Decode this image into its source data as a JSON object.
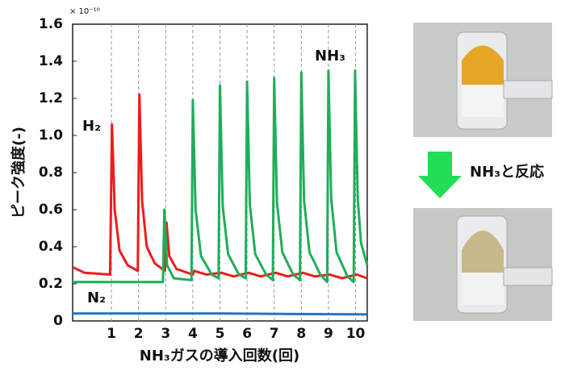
{
  "chart_data": {
    "type": "line",
    "ylabel": "ピーク強度(-)",
    "xlabel": "NH₃ガスの導入回数(回)",
    "multiplier": "× 10⁻¹⁰",
    "xlim": [
      -0.43,
      10.43
    ],
    "ylim": [
      0,
      1.6
    ],
    "xticks": [
      1,
      2,
      3,
      4,
      5,
      6,
      7,
      8,
      9,
      10
    ],
    "yticks": [
      0,
      0.2,
      0.4,
      0.6,
      0.8,
      {
        "value": 1,
        "label": "1.0"
      },
      1.2,
      1.4,
      1.6
    ],
    "grid": "x",
    "series": [
      {
        "name": "H₂",
        "color": "#ee1c1c",
        "x": [
          -0.43,
          0,
          0.95,
          1.02,
          1.12,
          1.3,
          1.6,
          1.97,
          2.03,
          2.13,
          2.3,
          2.6,
          2.97,
          3.03,
          3.13,
          3.4,
          4,
          4.05,
          4.5,
          5.05,
          5.5,
          6.05,
          6.5,
          7.05,
          7.5,
          8.05,
          8.5,
          9.05,
          9.5,
          10.05,
          10.43
        ],
        "values": [
          0.29,
          0.26,
          0.25,
          1.06,
          0.6,
          0.38,
          0.3,
          0.27,
          1.22,
          0.65,
          0.4,
          0.31,
          0.27,
          0.53,
          0.35,
          0.28,
          0.25,
          0.27,
          0.25,
          0.26,
          0.24,
          0.26,
          0.24,
          0.26,
          0.24,
          0.26,
          0.24,
          0.25,
          0.23,
          0.25,
          0.23
        ]
      },
      {
        "name": "NH₃",
        "color": "#1fae5a",
        "x": [
          -0.43,
          2.9,
          2.95,
          3.05,
          3.3,
          3.95,
          4.0,
          4.1,
          4.3,
          4.7,
          4.95,
          5.0,
          5.1,
          5.3,
          5.7,
          5.95,
          6.0,
          6.1,
          6.3,
          6.7,
          6.95,
          7.0,
          7.1,
          7.3,
          7.7,
          7.95,
          8.0,
          8.1,
          8.3,
          8.7,
          8.95,
          9.0,
          9.1,
          9.3,
          9.7,
          9.93,
          9.98,
          10.08,
          10.2,
          10.43
        ],
        "values": [
          0.21,
          0.21,
          0.6,
          0.3,
          0.23,
          0.22,
          1.19,
          0.6,
          0.35,
          0.25,
          0.23,
          1.27,
          0.62,
          0.36,
          0.25,
          0.23,
          1.29,
          0.63,
          0.36,
          0.25,
          0.22,
          1.31,
          0.64,
          0.37,
          0.25,
          0.22,
          1.34,
          0.65,
          0.37,
          0.25,
          0.21,
          1.35,
          0.66,
          0.37,
          0.24,
          0.21,
          1.35,
          0.66,
          0.42,
          0.3
        ]
      },
      {
        "name": "N₂",
        "color": "#1f77c4",
        "x": [
          -0.43,
          5,
          10.43
        ],
        "values": [
          0.04,
          0.04,
          0.035
        ]
      }
    ]
  },
  "figure": {
    "arrow_label": "NH₃と反応"
  }
}
